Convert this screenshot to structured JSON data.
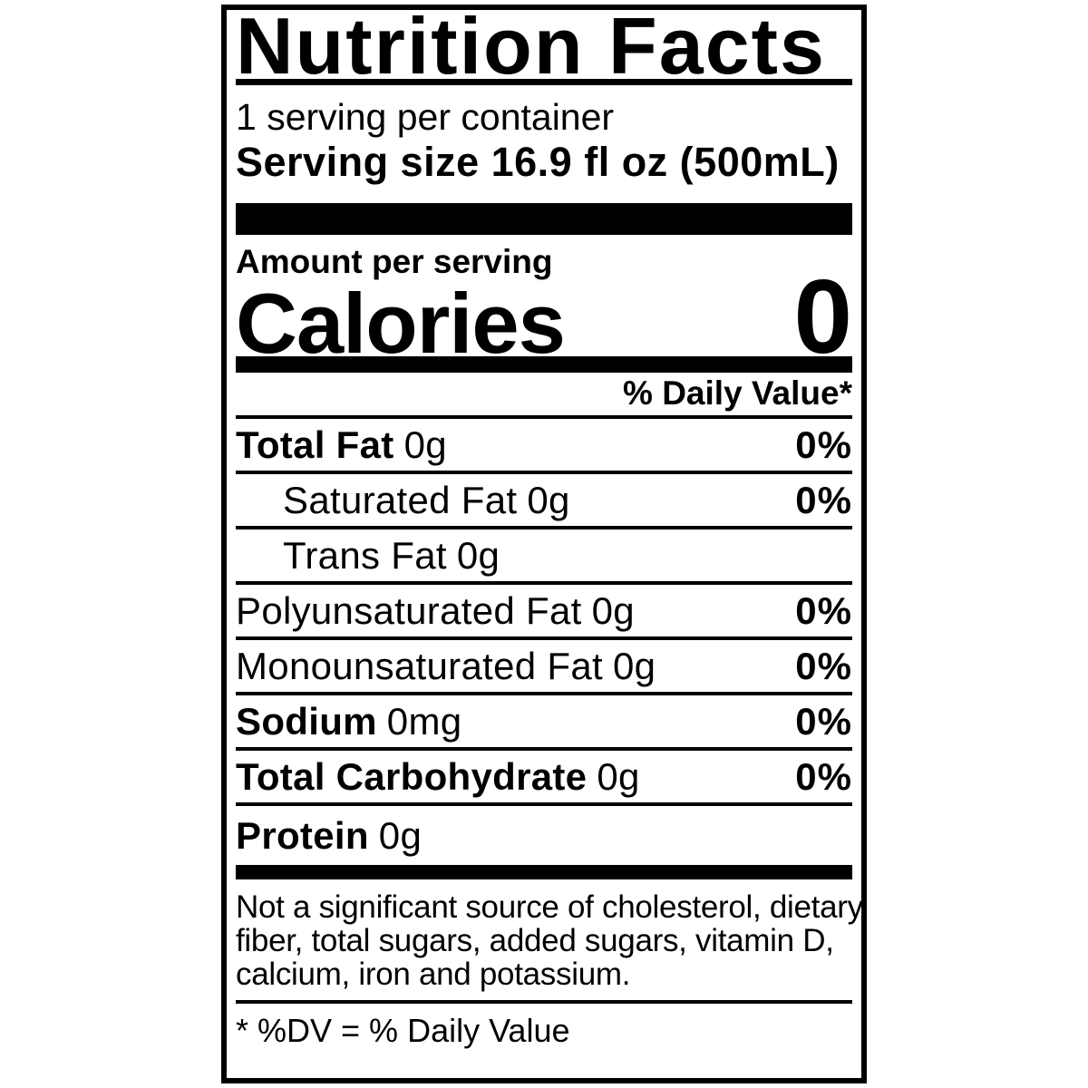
{
  "label": {
    "title": "Nutrition Facts",
    "servings_per_container": "1 serving per container",
    "serving_size": "Serving size 16.9 fl oz (500mL)",
    "amount_per_serving": "Amount per serving",
    "calories_label": "Calories",
    "calories_value": "0",
    "daily_value_header": "% Daily Value*",
    "nutrients": [
      {
        "name": "Total Fat",
        "amount": "0g",
        "daily_value": "0%",
        "emphasis": "bold",
        "indent": false
      },
      {
        "name": "Saturated Fat",
        "amount": "0g",
        "daily_value": "0%",
        "emphasis": "regular",
        "indent": true
      },
      {
        "name": "Trans Fat",
        "amount": "0g",
        "daily_value": "",
        "emphasis": "regular",
        "indent": true
      },
      {
        "name": "Polyunsaturated Fat",
        "amount": "0g",
        "daily_value": "0%",
        "emphasis": "regular",
        "indent": false
      },
      {
        "name": "Monounsaturated Fat",
        "amount": "0g",
        "daily_value": "0%",
        "emphasis": "regular",
        "indent": false
      },
      {
        "name": "Sodium",
        "amount": "0mg",
        "daily_value": "0%",
        "emphasis": "bold",
        "indent": false
      },
      {
        "name": "Total Carbohydrate",
        "amount": "0g",
        "daily_value": "0%",
        "emphasis": "bold",
        "indent": false
      },
      {
        "name": "Protein",
        "amount": "0g",
        "daily_value": "",
        "emphasis": "bold",
        "indent": false
      }
    ],
    "footnote_lines": [
      "Not a significant source of cholesterol, dietary",
      "fiber, total sugars, added sugars, vitamin D,",
      "calcium, iron and potassium."
    ],
    "dv_note": "* %DV = % Daily Value",
    "colors": {
      "ink": "#000000",
      "background": "#ffffff"
    }
  }
}
